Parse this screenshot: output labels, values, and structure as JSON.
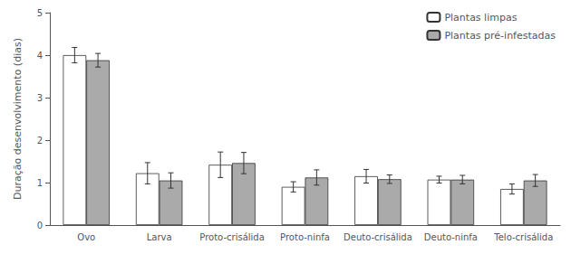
{
  "chart_data": {
    "type": "bar",
    "categories": [
      "Ovo",
      "Larva",
      "Proto-crisálida",
      "Proto-ninfa",
      "Deuto-crisálida",
      "Deuto-ninfa",
      "Telo-crisálida"
    ],
    "series": [
      {
        "name": "Plantas limpas",
        "color": "#ffffff",
        "values": [
          4.0,
          1.22,
          1.42,
          0.9,
          1.15,
          1.07,
          0.85
        ],
        "errors": [
          0.18,
          0.25,
          0.3,
          0.12,
          0.16,
          0.08,
          0.12
        ]
      },
      {
        "name": "Plantas pré-infestadas",
        "color": "#aaaaaa",
        "values": [
          3.88,
          1.05,
          1.46,
          1.12,
          1.08,
          1.07,
          1.05
        ],
        "errors": [
          0.16,
          0.18,
          0.25,
          0.18,
          0.1,
          0.1,
          0.14
        ]
      }
    ],
    "ylabel": "Duração desenvolvimento (dias)",
    "ylim": [
      0,
      5
    ],
    "yticks": [
      0,
      1,
      2,
      3,
      4,
      5
    ],
    "grid": false,
    "legend": "upper right"
  }
}
